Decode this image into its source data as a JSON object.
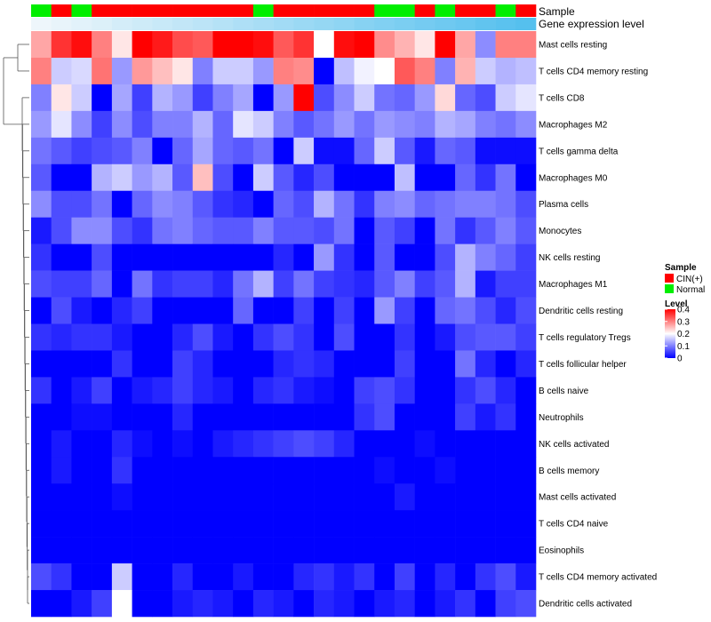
{
  "chart_data": {
    "type": "heatmap",
    "title": "",
    "annotation_tracks": [
      {
        "name": "Sample",
        "type": "categorical",
        "values": [
          "Normal",
          "CIN(+)",
          "Normal",
          "CIN(+)",
          "CIN(+)",
          "CIN(+)",
          "CIN(+)",
          "CIN(+)",
          "CIN(+)",
          "CIN(+)",
          "CIN(+)",
          "Normal",
          "CIN(+)",
          "CIN(+)",
          "CIN(+)",
          "CIN(+)",
          "CIN(+)",
          "Normal",
          "Normal",
          "CIN(+)",
          "Normal",
          "CIN(+)",
          "CIN(+)",
          "Normal",
          "CIN(+)"
        ]
      },
      {
        "name": "Gene expression level",
        "type": "gradient",
        "values": [
          0.0,
          0.04,
          0.08,
          0.12,
          0.17,
          0.21,
          0.25,
          0.29,
          0.33,
          0.37,
          0.42,
          0.46,
          0.5,
          0.54,
          0.58,
          0.62,
          0.67,
          0.71,
          0.75,
          0.79,
          0.83,
          0.87,
          0.92,
          0.96,
          1.0
        ],
        "color_low": "#eef6fb",
        "color_high": "#55c0ee"
      }
    ],
    "rows": [
      "Mast cells resting",
      "T cells CD4 memory resting",
      "T cells CD8",
      "Macrophages M2",
      "T cells gamma delta",
      "Macrophages M0",
      "Plasma cells",
      "Monocytes",
      "NK cells resting",
      "Macrophages M1",
      "Dendritic cells resting",
      "T cells regulatory  Tregs",
      "T cells follicular helper",
      "B cells naive",
      "Neutrophils",
      "NK cells activated",
      "B cells memory",
      "Mast cells activated",
      "T cells CD4 naive",
      "Eosinophils",
      "T cells CD4 memory activated",
      "Dendritic cells activated"
    ],
    "values": [
      [
        0.27,
        0.36,
        0.39,
        0.3,
        0.22,
        0.4,
        0.38,
        0.34,
        0.33,
        0.4,
        0.4,
        0.39,
        0.33,
        0.36,
        0.2,
        0.39,
        0.4,
        0.29,
        0.26,
        0.22,
        0.4,
        0.27,
        0.11,
        0.3,
        0.3
      ],
      [
        0.3,
        0.16,
        0.17,
        0.31,
        0.12,
        0.28,
        0.25,
        0.22,
        0.1,
        0.16,
        0.16,
        0.12,
        0.3,
        0.29,
        0.0,
        0.15,
        0.19,
        0.2,
        0.33,
        0.3,
        0.1,
        0.26,
        0.16,
        0.14,
        0.15
      ],
      [
        0.1,
        0.22,
        0.16,
        0.0,
        0.13,
        0.05,
        0.14,
        0.12,
        0.05,
        0.1,
        0.13,
        0.0,
        0.12,
        0.4,
        0.06,
        0.11,
        0.16,
        0.09,
        0.08,
        0.12,
        0.23,
        0.08,
        0.06,
        0.16,
        0.18
      ],
      [
        0.12,
        0.18,
        0.11,
        0.05,
        0.11,
        0.06,
        0.1,
        0.1,
        0.14,
        0.08,
        0.18,
        0.16,
        0.1,
        0.07,
        0.09,
        0.12,
        0.09,
        0.12,
        0.11,
        0.1,
        0.14,
        0.13,
        0.1,
        0.09,
        0.11
      ],
      [
        0.09,
        0.07,
        0.05,
        0.06,
        0.07,
        0.1,
        0.0,
        0.08,
        0.13,
        0.08,
        0.07,
        0.09,
        0.0,
        0.16,
        0.01,
        0.01,
        0.08,
        0.16,
        0.07,
        0.02,
        0.08,
        0.07,
        0.01,
        0.01,
        0.01
      ],
      [
        0.07,
        0.0,
        0.0,
        0.14,
        0.16,
        0.12,
        0.14,
        0.07,
        0.25,
        0.06,
        0.0,
        0.16,
        0.07,
        0.03,
        0.06,
        0.0,
        0.0,
        0.0,
        0.15,
        0.0,
        0.0,
        0.08,
        0.04,
        0.09,
        0.0
      ],
      [
        0.11,
        0.06,
        0.06,
        0.09,
        0.0,
        0.08,
        0.11,
        0.1,
        0.07,
        0.04,
        0.03,
        0.0,
        0.08,
        0.06,
        0.14,
        0.09,
        0.04,
        0.1,
        0.11,
        0.08,
        0.09,
        0.1,
        0.1,
        0.09,
        0.06
      ],
      [
        0.02,
        0.06,
        0.11,
        0.11,
        0.06,
        0.04,
        0.09,
        0.1,
        0.08,
        0.07,
        0.07,
        0.1,
        0.07,
        0.07,
        0.06,
        0.09,
        0.0,
        0.07,
        0.05,
        0.0,
        0.09,
        0.04,
        0.07,
        0.1,
        0.07
      ],
      [
        0.04,
        0.0,
        0.0,
        0.06,
        0.0,
        0.0,
        0.0,
        0.0,
        0.0,
        0.0,
        0.0,
        0.0,
        0.03,
        0.0,
        0.12,
        0.04,
        0.0,
        0.07,
        0.0,
        0.0,
        0.06,
        0.14,
        0.1,
        0.08,
        0.05
      ],
      [
        0.06,
        0.05,
        0.05,
        0.08,
        0.0,
        0.09,
        0.04,
        0.05,
        0.05,
        0.03,
        0.09,
        0.14,
        0.05,
        0.09,
        0.05,
        0.04,
        0.03,
        0.07,
        0.1,
        0.05,
        0.07,
        0.14,
        0.02,
        0.05,
        0.05
      ],
      [
        0.0,
        0.06,
        0.02,
        0.0,
        0.03,
        0.05,
        0.0,
        0.0,
        0.0,
        0.0,
        0.08,
        0.0,
        0.0,
        0.05,
        0.0,
        0.05,
        0.0,
        0.12,
        0.05,
        0.0,
        0.08,
        0.09,
        0.06,
        0.03,
        0.06
      ],
      [
        0.04,
        0.03,
        0.04,
        0.04,
        0.02,
        0.0,
        0.0,
        0.03,
        0.06,
        0.02,
        0.0,
        0.04,
        0.06,
        0.04,
        0.0,
        0.06,
        0.0,
        0.0,
        0.04,
        0.0,
        0.02,
        0.06,
        0.07,
        0.07,
        0.05
      ],
      [
        0.0,
        0.0,
        0.0,
        0.0,
        0.04,
        0.0,
        0.0,
        0.05,
        0.03,
        0.0,
        0.0,
        0.0,
        0.03,
        0.04,
        0.03,
        0.0,
        0.0,
        0.0,
        0.05,
        0.0,
        0.0,
        0.09,
        0.03,
        0.0,
        0.03
      ],
      [
        0.04,
        0.0,
        0.02,
        0.05,
        0.0,
        0.02,
        0.03,
        0.05,
        0.03,
        0.02,
        0.0,
        0.03,
        0.04,
        0.02,
        0.01,
        0.0,
        0.05,
        0.06,
        0.04,
        0.0,
        0.0,
        0.04,
        0.06,
        0.03,
        0.0
      ],
      [
        0.0,
        0.0,
        0.01,
        0.01,
        0.0,
        0.0,
        0.0,
        0.03,
        0.0,
        0.0,
        0.0,
        0.0,
        0.0,
        0.0,
        0.0,
        0.0,
        0.04,
        0.06,
        0.0,
        0.0,
        0.0,
        0.05,
        0.02,
        0.04,
        0.0
      ],
      [
        0.0,
        0.02,
        0.0,
        0.0,
        0.03,
        0.01,
        0.0,
        0.01,
        0.0,
        0.02,
        0.03,
        0.04,
        0.05,
        0.06,
        0.05,
        0.03,
        0.0,
        0.0,
        0.0,
        0.01,
        0.0,
        0.0,
        0.0,
        0.0,
        0.0
      ],
      [
        0.0,
        0.02,
        0.0,
        0.0,
        0.04,
        0.0,
        0.0,
        0.0,
        0.0,
        0.0,
        0.0,
        0.0,
        0.0,
        0.0,
        0.0,
        0.0,
        0.0,
        0.01,
        0.0,
        0.0,
        0.01,
        0.0,
        0.0,
        0.0,
        0.0
      ],
      [
        0.0,
        0.0,
        0.0,
        0.0,
        0.01,
        0.0,
        0.0,
        0.0,
        0.0,
        0.0,
        0.0,
        0.0,
        0.0,
        0.0,
        0.0,
        0.0,
        0.0,
        0.0,
        0.02,
        0.0,
        0.0,
        0.0,
        0.0,
        0.0,
        0.0
      ],
      [
        0.0,
        0.0,
        0.0,
        0.0,
        0.0,
        0.0,
        0.0,
        0.0,
        0.0,
        0.0,
        0.0,
        0.0,
        0.0,
        0.0,
        0.0,
        0.0,
        0.0,
        0.0,
        0.0,
        0.0,
        0.0,
        0.0,
        0.0,
        0.0,
        0.0
      ],
      [
        0.0,
        0.0,
        0.0,
        0.0,
        0.0,
        0.0,
        0.0,
        0.0,
        0.0,
        0.0,
        0.0,
        0.0,
        0.0,
        0.0,
        0.0,
        0.0,
        0.0,
        0.0,
        0.0,
        0.0,
        0.0,
        0.0,
        0.0,
        0.0,
        0.0
      ],
      [
        0.06,
        0.04,
        0.0,
        0.0,
        0.16,
        0.0,
        0.0,
        0.03,
        0.0,
        0.0,
        0.02,
        0.0,
        0.0,
        0.03,
        0.04,
        0.02,
        0.04,
        0.0,
        0.05,
        0.0,
        0.03,
        0.0,
        0.04,
        0.06,
        0.02
      ],
      [
        0.0,
        0.0,
        0.02,
        0.05,
        0.2,
        0.0,
        0.0,
        0.02,
        0.03,
        0.02,
        0.0,
        0.03,
        0.02,
        0.0,
        0.03,
        0.02,
        0.0,
        0.02,
        0.03,
        0.0,
        0.02,
        0.04,
        0.0,
        0.05,
        0.06
      ]
    ],
    "scale": {
      "min": 0,
      "max": 0.4,
      "mid": 0.2,
      "color_low": "#0000ff",
      "color_mid": "#ffffff",
      "color_high": "#ff0000"
    },
    "row_dendrogram": true,
    "legend": {
      "position": "right",
      "sample_title": "Sample",
      "sample_items": [
        {
          "label": "CIN(+)",
          "color": "#ff0000"
        },
        {
          "label": "Normal",
          "color": "#00ee00"
        }
      ],
      "level_title": "Level",
      "level_ticks": [
        "0.4",
        "0.3",
        "0.2",
        "0.1",
        "0"
      ],
      "level_values": [
        0.4,
        0.3,
        0.2,
        0.1,
        0.0
      ]
    }
  },
  "colors": {
    "cin": "#ff0000",
    "normal": "#00ee00",
    "dendrogram": "#555555"
  }
}
